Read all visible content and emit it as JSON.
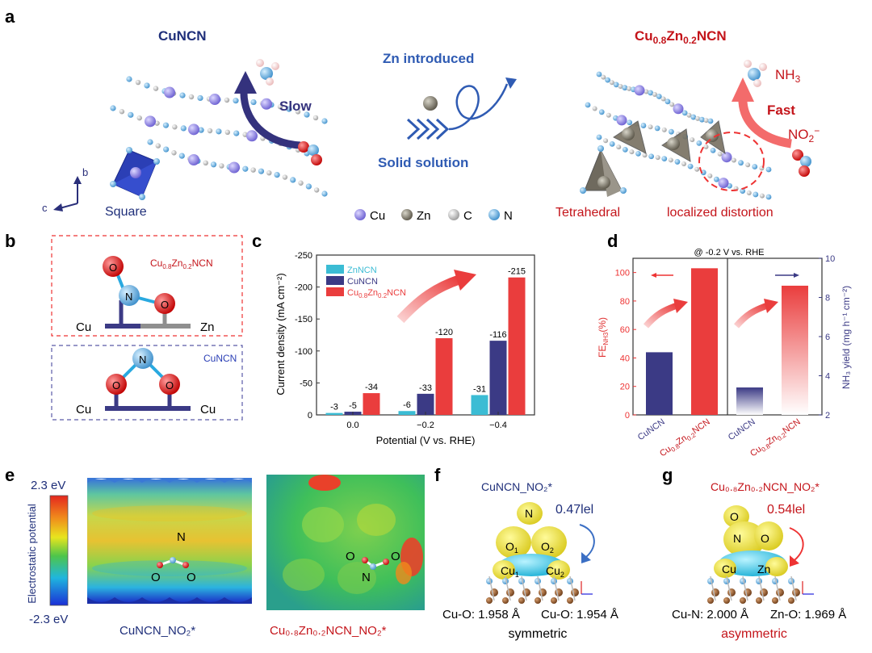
{
  "panels": {
    "a": {
      "letter": "a",
      "left_title": "CuNCN",
      "right_title_base": "Cu",
      "right_title_sub1": "0.8",
      "right_title_mid": "Zn",
      "right_title_sub2": "0.2",
      "right_title_end": "NCN",
      "zn_introduced": "Zn introduced",
      "solid_solution": "Solid solution",
      "slow": "Slow",
      "fast": "Fast",
      "square": "Square",
      "tetrahedral": "Tetrahedral",
      "localized_distortion": "localized distortion",
      "nh3_base": "NH",
      "nh3_sub": "3",
      "no2_base": "NO",
      "no2_sub": "2",
      "no2_sup": "−",
      "axis_b": "b",
      "axis_c": "c",
      "legend": [
        {
          "label": "Cu",
          "color": "#8a7fe0"
        },
        {
          "label": "Zn",
          "color": "#6f6a5e"
        },
        {
          "label": "C",
          "color": "#c9c9c9"
        },
        {
          "label": "N",
          "color": "#5aa7d8"
        }
      ]
    },
    "b": {
      "letter": "b",
      "top_label_base": "Cu",
      "top_label_sub1": "0.8",
      "top_label_mid": "Zn",
      "top_label_sub2": "0.2",
      "top_label_end": "NCN",
      "bottom_label": "CuNCN",
      "atom_O": "O",
      "atom_N": "N",
      "cu": "Cu",
      "zn": "Zn"
    },
    "c": {
      "letter": "c",
      "colors": [
        "#3bbcd4",
        "#3b3a85",
        "#ea3d3d"
      ]
    },
    "d": {
      "letter": "d",
      "header": "@ -0.2 V vs. RHE",
      "left_ylabel_base": "FE",
      "left_ylabel_sub": "NH3",
      "left_ylabel_end": "(%)",
      "right_ylabel": "NH₃ yield (mg h⁻¹ cm⁻²)",
      "categories": [
        "CuNCN",
        "Cu0.8Zn0.2NCN",
        "CuNCN",
        "Cu0.8Zn0.2NCN"
      ]
    },
    "e": {
      "letter": "e",
      "top_value": "2.3 eV",
      "bottom_value": "-2.3 eV",
      "colorbar_label": "Electrostatic potential",
      "left_caption": "CuNCN_NO₂*",
      "right_caption": "Cu₀.₈Zn₀.₂NCN_NO₂*",
      "atom_N": "N",
      "atom_O": "O"
    },
    "f": {
      "letter": "f",
      "title": "CuNCN_NO₂*",
      "charge": "0.47lel",
      "atom_N": "N",
      "atom_O1": "O",
      "atom_O1_sub": "1",
      "atom_O2": "O",
      "atom_O2_sub": "2",
      "atom_Cu1": "Cu",
      "atom_Cu1_sub": "1",
      "atom_Cu2": "Cu",
      "atom_Cu2_sub": "2",
      "bond_left": "Cu-O: 1.958 Å",
      "bond_right": "Cu-O: 1.954 Å",
      "caption": "symmetric"
    },
    "g": {
      "letter": "g",
      "title": "Cu₀.₈Zn₀.₂NCN_NO₂*",
      "charge": "0.54lel",
      "atom_O1": "O",
      "atom_N": "N",
      "atom_O2": "O",
      "atom_Cu": "Cu",
      "atom_Zn": "Zn",
      "bond_left": "Cu-N: 2.000 Å",
      "bond_right": "Zn-O: 1.969 Å",
      "caption": "asymmetric"
    }
  },
  "chart_data": [
    {
      "panel": "c",
      "type": "bar",
      "categories": [
        "0.0",
        "−0.2",
        "−0.4"
      ],
      "series": [
        {
          "name": "ZnNCN",
          "values": [
            -3,
            -6,
            -31
          ]
        },
        {
          "name": "CuNCN",
          "values": [
            -5,
            -33,
            -116
          ]
        },
        {
          "name": "Cu0.8Zn0.2NCN",
          "values": [
            -34,
            -120,
            -215
          ]
        }
      ],
      "xlabel": "Potential (V vs. RHE)",
      "ylabel": "Current density (mA cm⁻²)",
      "ylim": [
        0,
        -250
      ],
      "yticks": [
        "0",
        "-50",
        "-100",
        "-150",
        "-200",
        "-250"
      ],
      "y_inverted": true,
      "legend_position": "top-left"
    },
    {
      "panel": "d-left",
      "type": "bar",
      "categories": [
        "CuNCN",
        "Cu0.8Zn0.2NCN"
      ],
      "values": [
        44,
        103
      ],
      "ylabel": "FE_NH3 (%)",
      "ylim": [
        0,
        110
      ],
      "yticks": [
        "0",
        "20",
        "40",
        "60",
        "80",
        "100"
      ]
    },
    {
      "panel": "d-right",
      "type": "bar",
      "categories": [
        "CuNCN",
        "Cu0.8Zn0.2NCN"
      ],
      "values": [
        3.4,
        8.6
      ],
      "ylabel": "NH₃ yield (mg h⁻¹ cm⁻²)",
      "ylim": [
        2,
        10
      ],
      "yticks": [
        "2",
        "4",
        "6",
        "8",
        "10"
      ]
    }
  ]
}
